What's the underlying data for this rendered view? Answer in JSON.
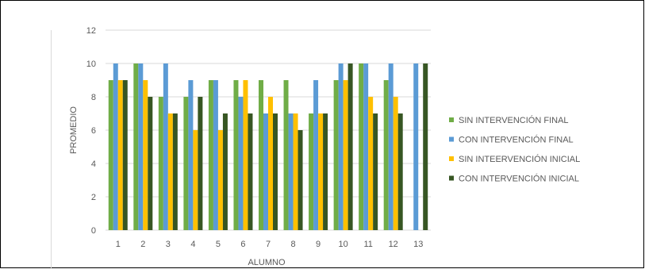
{
  "chart_data": {
    "type": "bar",
    "title": "",
    "xlabel": "ALUMNO",
    "ylabel": "PROMEDIO",
    "ylim": [
      0,
      12
    ],
    "yticks": [
      0,
      2,
      4,
      6,
      8,
      10,
      12
    ],
    "grid": true,
    "legend_position": "right",
    "categories": [
      "1",
      "2",
      "3",
      "4",
      "5",
      "6",
      "7",
      "8",
      "9",
      "10",
      "11",
      "12",
      "13"
    ],
    "series": [
      {
        "name": "SIN INTERVENCIÓN FINAL",
        "color": "#70ad47",
        "values": [
          9,
          10,
          8,
          8,
          9,
          9,
          9,
          9,
          7,
          9,
          10,
          9,
          null
        ]
      },
      {
        "name": "CON INTERVENCIÓN FINAL",
        "color": "#5b9bd5",
        "values": [
          10,
          10,
          10,
          9,
          9,
          8,
          7,
          7,
          9,
          10,
          10,
          10,
          10
        ]
      },
      {
        "name": "SIN INTEERVENCIÓN INICIAL",
        "color": "#ffc000",
        "values": [
          9,
          9,
          7,
          6,
          6,
          9,
          8,
          7,
          7,
          9,
          8,
          8,
          null
        ]
      },
      {
        "name": "CON INTERVENCIÓN INICIAL",
        "color": "#375623",
        "values": [
          9,
          8,
          7,
          8,
          7,
          7,
          7,
          6,
          7,
          10,
          7,
          7,
          10
        ]
      }
    ]
  }
}
